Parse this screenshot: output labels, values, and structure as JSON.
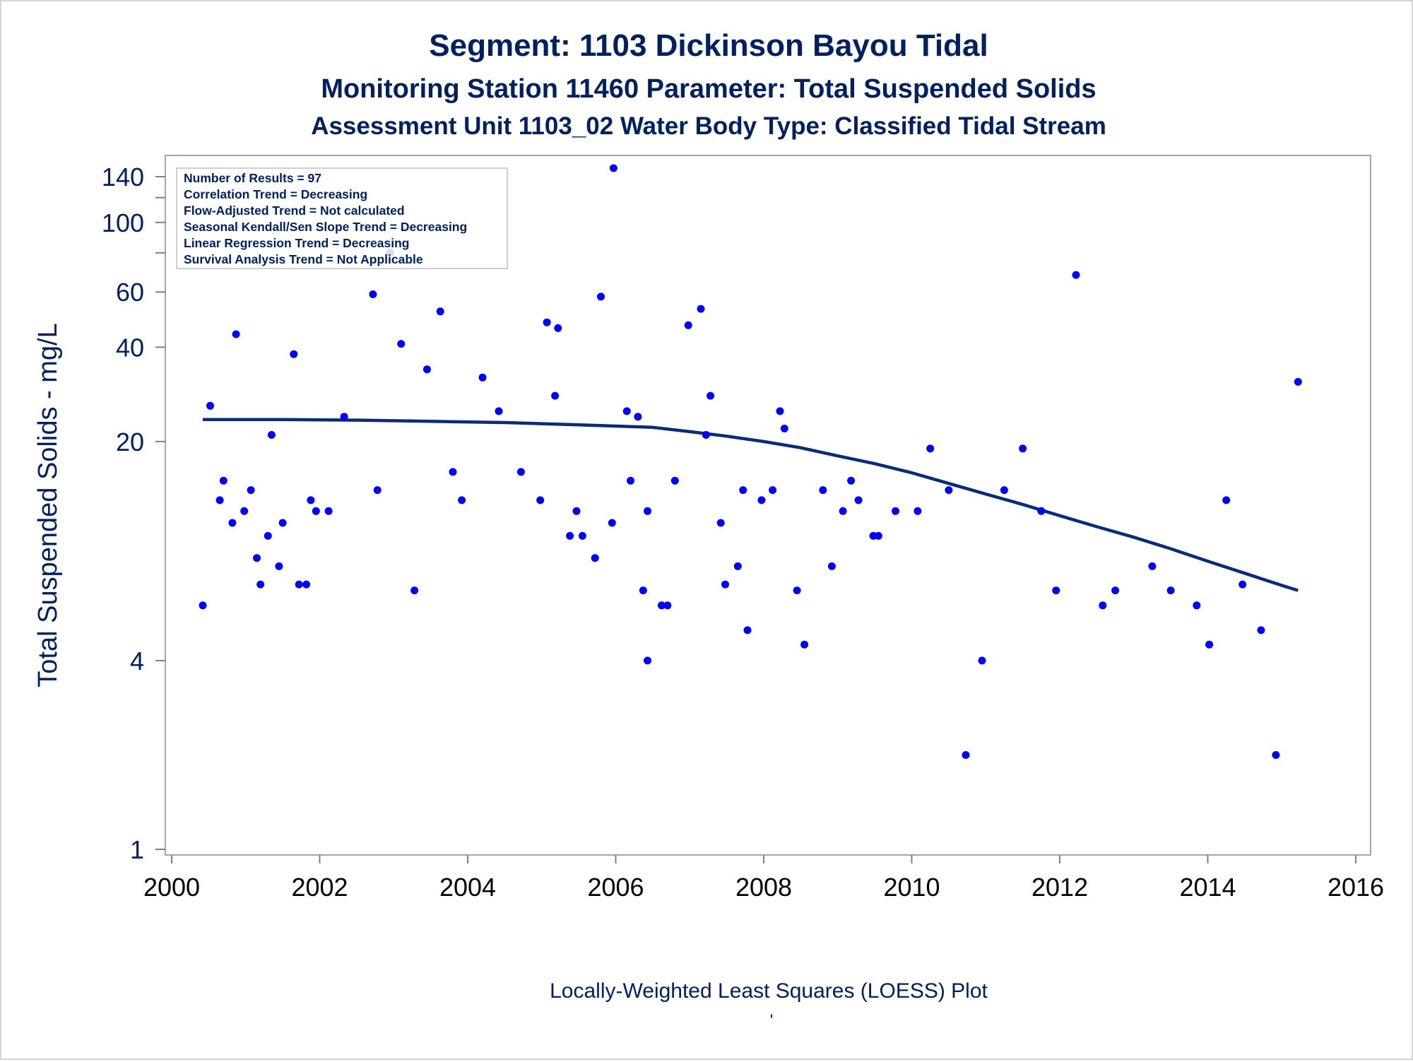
{
  "chart_data": {
    "type": "scatter",
    "titles": [
      "Segment: 1103  Dickinson Bayou Tidal",
      "Monitoring Station 11460 Parameter: Total Suspended Solids",
      "Assessment Unit 1103_02   Water Body Type: Classified Tidal Stream"
    ],
    "ylabel": "Total Suspended Solids - mg/L",
    "footnote": "Locally-Weighted Least Squares (LOESS) Plot",
    "footnote_mark": "'",
    "y_scale": "log",
    "xlim": [
      2000,
      2016
    ],
    "ylim": [
      1,
      160
    ],
    "x_ticks": [
      "2000",
      "2002",
      "2004",
      "2006",
      "2008",
      "2010",
      "2012",
      "2014",
      "2016"
    ],
    "y_ticks": [
      "1",
      "4",
      "20",
      "40",
      "60",
      "100",
      "140"
    ],
    "y_minor_ticks": [
      120,
      80
    ],
    "stats_box": [
      "Number of Results = 97",
      "Correlation Trend = Decreasing",
      "Flow-Adjusted Trend = Not calculated",
      "Seasonal Kendall/Sen Slope Trend = Decreasing",
      "Linear Regression Trend = Decreasing",
      "Survival Analysis Trend = Not Applicable"
    ],
    "grid": false,
    "colors": {
      "title": "#002060",
      "axis_text": "#002060",
      "tick_text": "#000000",
      "points": "#0000ff",
      "loess_line": "#0b2a7a",
      "frame": "#a6a6a6"
    },
    "series": [
      {
        "type": "scatter",
        "points": [
          [
            2000.42,
            6.0
          ],
          [
            2000.52,
            26.0
          ],
          [
            2000.65,
            13.0
          ],
          [
            2000.7,
            15.0
          ],
          [
            2000.82,
            11.0
          ],
          [
            2000.87,
            44.0
          ],
          [
            2000.98,
            12.0
          ],
          [
            2001.07,
            14.0
          ],
          [
            2001.15,
            8.5
          ],
          [
            2001.2,
            7.0
          ],
          [
            2001.3,
            10.0
          ],
          [
            2001.35,
            21.0
          ],
          [
            2001.45,
            8.0
          ],
          [
            2001.5,
            11.0
          ],
          [
            2001.65,
            38.0
          ],
          [
            2001.72,
            7.0
          ],
          [
            2001.82,
            7.0
          ],
          [
            2001.88,
            13.0
          ],
          [
            2001.95,
            12.0
          ],
          [
            2002.12,
            12.0
          ],
          [
            2002.33,
            24.0
          ],
          [
            2002.72,
            59.0
          ],
          [
            2002.78,
            14.0
          ],
          [
            2002.95,
            80.0
          ],
          [
            2003.1,
            41.0
          ],
          [
            2003.28,
            6.7
          ],
          [
            2003.45,
            34.0
          ],
          [
            2003.63,
            52.0
          ],
          [
            2003.8,
            16.0
          ],
          [
            2003.92,
            13.0
          ],
          [
            2004.2,
            32.0
          ],
          [
            2004.42,
            25.0
          ],
          [
            2004.72,
            16.0
          ],
          [
            2004.98,
            13.0
          ],
          [
            2005.07,
            48.0
          ],
          [
            2005.18,
            28.0
          ],
          [
            2005.22,
            46.0
          ],
          [
            2005.38,
            10.0
          ],
          [
            2005.47,
            12.0
          ],
          [
            2005.55,
            10.0
          ],
          [
            2005.72,
            8.5
          ],
          [
            2005.8,
            58.0
          ],
          [
            2005.95,
            11.0
          ],
          [
            2005.97,
            149.0
          ],
          [
            2006.15,
            25.0
          ],
          [
            2006.2,
            15.0
          ],
          [
            2006.3,
            24.0
          ],
          [
            2006.37,
            6.7
          ],
          [
            2006.43,
            4.0
          ],
          [
            2006.43,
            12.0
          ],
          [
            2006.62,
            6.0
          ],
          [
            2006.7,
            6.0
          ],
          [
            2006.8,
            15.0
          ],
          [
            2006.98,
            47.0
          ],
          [
            2007.15,
            53.0
          ],
          [
            2007.22,
            21.0
          ],
          [
            2007.28,
            28.0
          ],
          [
            2007.42,
            11.0
          ],
          [
            2007.48,
            7.0
          ],
          [
            2007.65,
            8.0
          ],
          [
            2007.72,
            14.0
          ],
          [
            2007.78,
            5.0
          ],
          [
            2007.97,
            13.0
          ],
          [
            2008.12,
            14.0
          ],
          [
            2008.22,
            25.0
          ],
          [
            2008.28,
            22.0
          ],
          [
            2008.45,
            6.7
          ],
          [
            2008.55,
            4.5
          ],
          [
            2008.8,
            14.0
          ],
          [
            2008.92,
            8.0
          ],
          [
            2009.07,
            12.0
          ],
          [
            2009.18,
            15.0
          ],
          [
            2009.28,
            13.0
          ],
          [
            2009.48,
            10.0
          ],
          [
            2009.55,
            10.0
          ],
          [
            2009.78,
            12.0
          ],
          [
            2010.08,
            12.0
          ],
          [
            2010.25,
            19.0
          ],
          [
            2010.5,
            14.0
          ],
          [
            2010.73,
            2.0
          ],
          [
            2010.95,
            4.0
          ],
          [
            2011.25,
            14.0
          ],
          [
            2011.5,
            19.0
          ],
          [
            2011.75,
            12.0
          ],
          [
            2011.95,
            6.7
          ],
          [
            2012.22,
            68.0
          ],
          [
            2012.58,
            6.0
          ],
          [
            2012.75,
            6.7
          ],
          [
            2013.25,
            8.0
          ],
          [
            2013.5,
            6.7
          ],
          [
            2013.85,
            6.0
          ],
          [
            2014.02,
            4.5
          ],
          [
            2014.25,
            13.0
          ],
          [
            2014.47,
            7.0
          ],
          [
            2014.72,
            5.0
          ],
          [
            2014.92,
            2.0
          ],
          [
            2015.22,
            31.0
          ]
        ]
      },
      {
        "type": "line",
        "points": [
          [
            2000.42,
            23.5
          ],
          [
            2001.5,
            23.5
          ],
          [
            2002.5,
            23.4
          ],
          [
            2003.5,
            23.2
          ],
          [
            2004.5,
            23.0
          ],
          [
            2005.5,
            22.6
          ],
          [
            2006.5,
            22.2
          ],
          [
            2007.0,
            21.5
          ],
          [
            2007.5,
            20.8
          ],
          [
            2008.0,
            20.0
          ],
          [
            2008.5,
            19.1
          ],
          [
            2009.0,
            18.0
          ],
          [
            2009.5,
            17.0
          ],
          [
            2010.0,
            15.9
          ],
          [
            2010.5,
            14.7
          ],
          [
            2011.0,
            13.6
          ],
          [
            2011.5,
            12.6
          ],
          [
            2012.0,
            11.6
          ],
          [
            2012.5,
            10.7
          ],
          [
            2013.0,
            9.9
          ],
          [
            2013.5,
            9.1
          ],
          [
            2014.0,
            8.3
          ],
          [
            2014.5,
            7.6
          ],
          [
            2015.0,
            6.95
          ],
          [
            2015.22,
            6.7
          ]
        ]
      }
    ]
  }
}
